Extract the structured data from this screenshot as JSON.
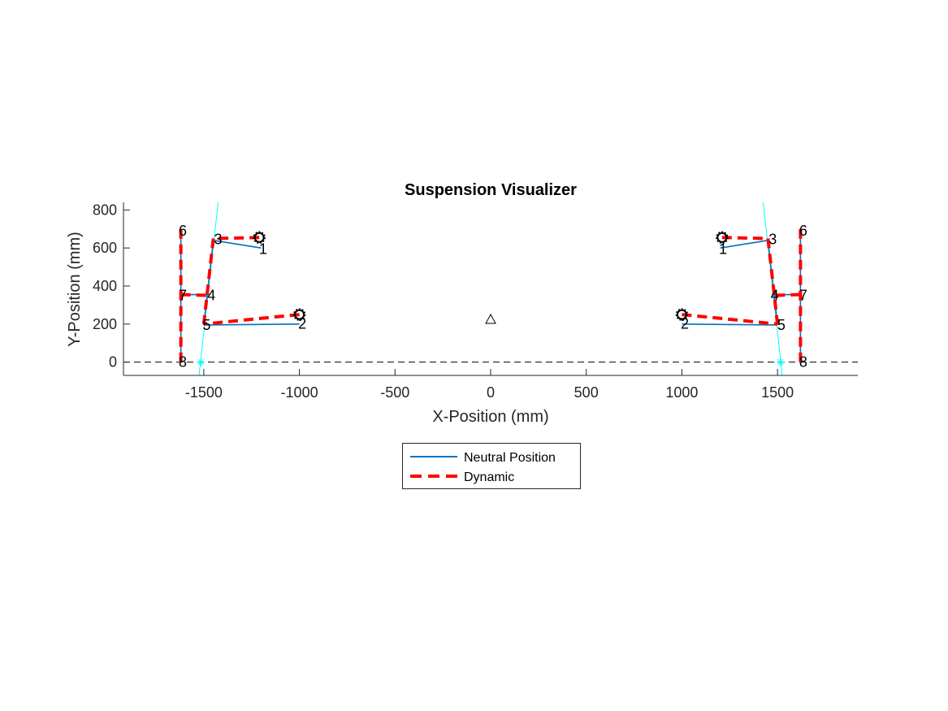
{
  "chart_data": {
    "type": "line",
    "title": "Suspension Visualizer",
    "xlabel": "X-Position (mm)",
    "ylabel": "Y-Position (mm)",
    "xlim": [
      -1920,
      1920
    ],
    "ylim": [
      -70,
      840
    ],
    "xticks": [
      -1500,
      -1000,
      -500,
      0,
      500,
      1000,
      1500
    ],
    "yticks": [
      0,
      200,
      400,
      600,
      800
    ],
    "xtick_labels": [
      "-1500",
      "-1000",
      "-500",
      "0",
      "500",
      "1000",
      "1500"
    ],
    "ytick_labels": [
      "0",
      "200",
      "400",
      "600",
      "800"
    ],
    "grid": false,
    "legend_position": "below",
    "legend": [
      {
        "name": "Neutral Position",
        "style": "solid",
        "color": "#0072BD"
      },
      {
        "name": "Dynamic",
        "style": "dashed",
        "color": "#FF0000"
      }
    ],
    "colors": {
      "neutral": "#0072BD",
      "dynamic": "#FF0000",
      "instant_axis": "#00FFFF",
      "ground": "#000000",
      "marker": "#000000"
    },
    "ground_line": {
      "y": 0,
      "style": "dashed"
    },
    "center_marker": {
      "symbol": "triangle",
      "x": 0,
      "y": 225
    },
    "sides": [
      {
        "side": "left",
        "neutral_segments": [
          [
            [
              -1200,
              600
            ],
            [
              -1450,
              640
            ]
          ],
          [
            [
              -1000,
              200
            ],
            [
              -1500,
              195
            ]
          ],
          [
            [
              -1450,
              640
            ],
            [
              -1500,
              195
            ]
          ],
          [
            [
              -1620,
              700
            ],
            [
              -1620,
              0
            ]
          ],
          [
            [
              -1620,
              355
            ],
            [
              -1470,
              355
            ]
          ]
        ],
        "dynamic_segments": [
          [
            [
              -1210,
              655
            ],
            [
              -1450,
              650
            ]
          ],
          [
            [
              -1000,
              250
            ],
            [
              -1500,
              200
            ]
          ],
          [
            [
              -1450,
              650
            ],
            [
              -1500,
              200
            ]
          ],
          [
            [
              -1620,
              700
            ],
            [
              -1620,
              0
            ]
          ],
          [
            [
              -1620,
              355
            ],
            [
              -1470,
              350
            ]
          ]
        ],
        "dynamic_markers": [
          [
            -1210,
            655
          ],
          [
            -1000,
            250
          ]
        ],
        "instant_axis": {
          "from": [
            -1525,
            -70
          ],
          "to": [
            -1425,
            840
          ]
        },
        "instant_center": [
          -1515,
          0
        ],
        "labels": [
          {
            "text": "1",
            "x": -1190,
            "y": 590
          },
          {
            "text": "2",
            "x": -985,
            "y": 195
          },
          {
            "text": "3",
            "x": -1425,
            "y": 640
          },
          {
            "text": "4",
            "x": -1460,
            "y": 345
          },
          {
            "text": "5",
            "x": -1485,
            "y": 190
          },
          {
            "text": "6",
            "x": -1610,
            "y": 685
          },
          {
            "text": "7",
            "x": -1610,
            "y": 345
          },
          {
            "text": "8",
            "x": -1610,
            "y": -5
          }
        ]
      },
      {
        "side": "right",
        "neutral_segments": [
          [
            [
              1200,
              600
            ],
            [
              1450,
              640
            ]
          ],
          [
            [
              1000,
              200
            ],
            [
              1500,
              195
            ]
          ],
          [
            [
              1450,
              640
            ],
            [
              1500,
              195
            ]
          ],
          [
            [
              1620,
              700
            ],
            [
              1620,
              0
            ]
          ],
          [
            [
              1620,
              355
            ],
            [
              1470,
              355
            ]
          ]
        ],
        "dynamic_segments": [
          [
            [
              1210,
              655
            ],
            [
              1450,
              650
            ]
          ],
          [
            [
              1000,
              250
            ],
            [
              1500,
              200
            ]
          ],
          [
            [
              1450,
              650
            ],
            [
              1500,
              200
            ]
          ],
          [
            [
              1620,
              700
            ],
            [
              1620,
              0
            ]
          ],
          [
            [
              1620,
              355
            ],
            [
              1470,
              350
            ]
          ]
        ],
        "dynamic_markers": [
          [
            1210,
            655
          ],
          [
            1000,
            250
          ]
        ],
        "instant_axis": {
          "from": [
            1525,
            -70
          ],
          "to": [
            1425,
            840
          ]
        },
        "instant_center": [
          1515,
          0
        ],
        "labels": [
          {
            "text": "1",
            "x": 1215,
            "y": 590
          },
          {
            "text": "2",
            "x": 1015,
            "y": 195
          },
          {
            "text": "3",
            "x": 1475,
            "y": 640
          },
          {
            "text": "4",
            "x": 1485,
            "y": 345
          },
          {
            "text": "5",
            "x": 1520,
            "y": 190
          },
          {
            "text": "6",
            "x": 1635,
            "y": 685
          },
          {
            "text": "7",
            "x": 1635,
            "y": 345
          },
          {
            "text": "8",
            "x": 1635,
            "y": -5
          }
        ]
      }
    ]
  }
}
